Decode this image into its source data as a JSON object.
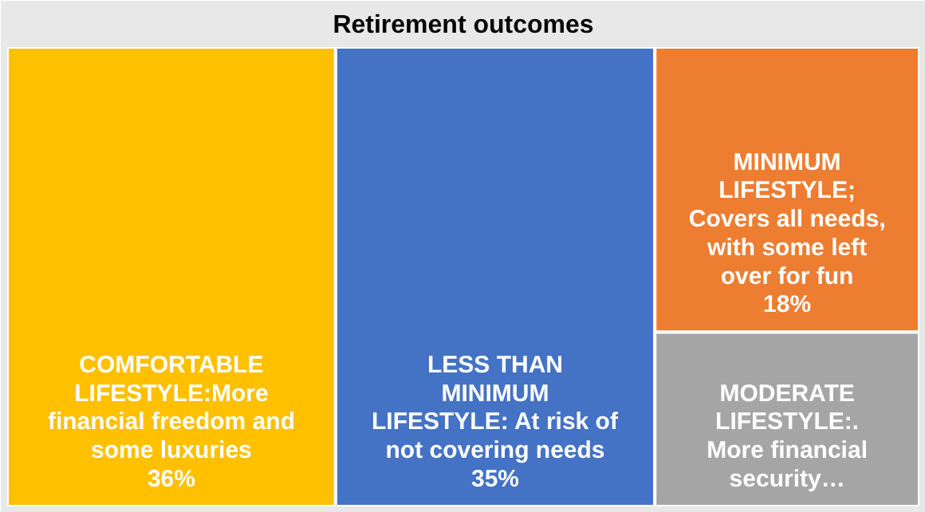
{
  "chart_data": {
    "type": "other",
    "title": "Retirement outcomes",
    "categories": [
      "COMFORTABLE\nLIFESTYLE:More\nfinancial freedom and\nsome luxuries",
      "LESS THAN\nMINIMUM\nLIFESTYLE: At risk of\nnot covering needs",
      "MINIMUM\nLIFESTYLE;\nCovers all needs,\nwith some left\nover for fun",
      "MODERATE\nLIFESTYLE:.\nMore financial\nsecurity…"
    ],
    "values": [
      36,
      35,
      18,
      null
    ],
    "value_labels": [
      "36%",
      "35%",
      "18%",
      null
    ],
    "colors": [
      "#ffc000",
      "#4472c4",
      "#ed7d31",
      "#a5a5a5"
    ]
  }
}
